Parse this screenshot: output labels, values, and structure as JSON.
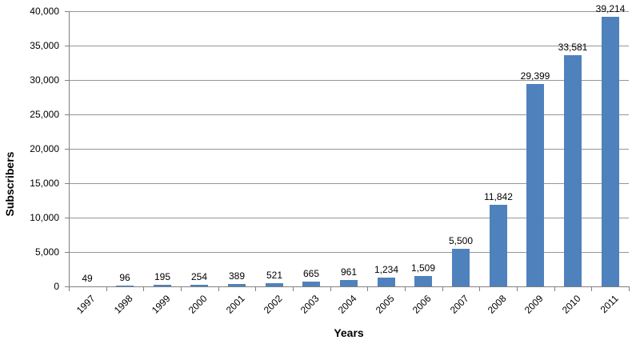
{
  "chart_data": {
    "type": "bar",
    "title": "",
    "categories": [
      "1997",
      "1998",
      "1999",
      "2000",
      "2001",
      "2002",
      "2003",
      "2004",
      "2005",
      "2006",
      "2007",
      "2008",
      "2009",
      "2010",
      "2011"
    ],
    "values": [
      49,
      96,
      195,
      254,
      389,
      521,
      665,
      961,
      1234,
      1509,
      5500,
      11842,
      29399,
      33581,
      39214
    ],
    "value_labels": [
      "49",
      "96",
      "195",
      "254",
      "389",
      "521",
      "665",
      "961",
      "1,234",
      "1,509",
      "5,500",
      "11,842",
      "29,399",
      "33,581",
      "39,214"
    ],
    "xlabel": "Years",
    "ylabel": "Subscribers",
    "ylim": [
      0,
      40000
    ],
    "ytick_step": 5000,
    "ytick_labels": [
      "0",
      "5,000",
      "10,000",
      "15,000",
      "20,000",
      "25,000",
      "30,000",
      "35,000",
      "40,000"
    ],
    "grid": "horizontal",
    "legend": "none",
    "bar_color": "#4F81BD",
    "gridline_color": "#969696",
    "axis_color": "#808080",
    "text_color": "#000000"
  }
}
